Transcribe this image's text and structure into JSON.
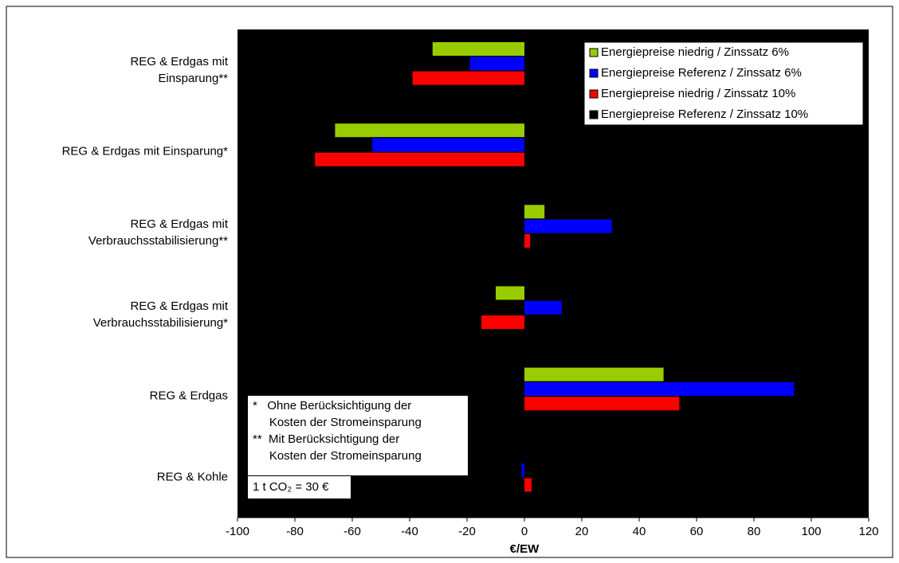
{
  "chart_data": {
    "type": "barh",
    "x_label": "€/EW",
    "categories": [
      "REG & Erdgas mit\nEinsparung**",
      "REG & Erdgas mit Einsparung*",
      "REG & Erdgas mit\nVerbrauchsstabilisierung**",
      "REG & Erdgas mit\nVerbrauchsstabilisierung*",
      "REG & Erdgas",
      "REG & Kohle"
    ],
    "series": [
      {
        "name": "Energiepreise niedrig / Zinssatz 6%",
        "color": "#99cc00",
        "values": [
          -32,
          -66,
          7,
          -10,
          48.5,
          0
        ]
      },
      {
        "name": "Energiepreise Referenz / Zinssatz 6%",
        "color": "#0000ff",
        "values": [
          -19,
          -53,
          30.5,
          13,
          94,
          -1
        ]
      },
      {
        "name": "Energiepreise niedrig / Zinssatz 10%",
        "color": "#ff0000",
        "values": [
          -39,
          -73,
          2,
          -15,
          54,
          2.5
        ]
      },
      {
        "name": "Energiepreise Referenz / Zinssatz 10%",
        "color": "#000000",
        "values": [
          0,
          0,
          0,
          0,
          0,
          0
        ]
      }
    ],
    "xlim": [
      -100,
      120
    ],
    "xticks": [
      -100,
      -80,
      -60,
      -40,
      -20,
      0,
      20,
      40,
      60,
      80,
      100,
      120
    ],
    "legend": "upper right",
    "plot_background": "#000000",
    "annotations": [
      "*   Ohne Berücksichtigung der\n     Kosten der Stromeinsparung\n**  Mit Berücksichtigung der\n     Kosten der Stromeinsparung",
      "1 t CO₂ = 30 €"
    ]
  }
}
